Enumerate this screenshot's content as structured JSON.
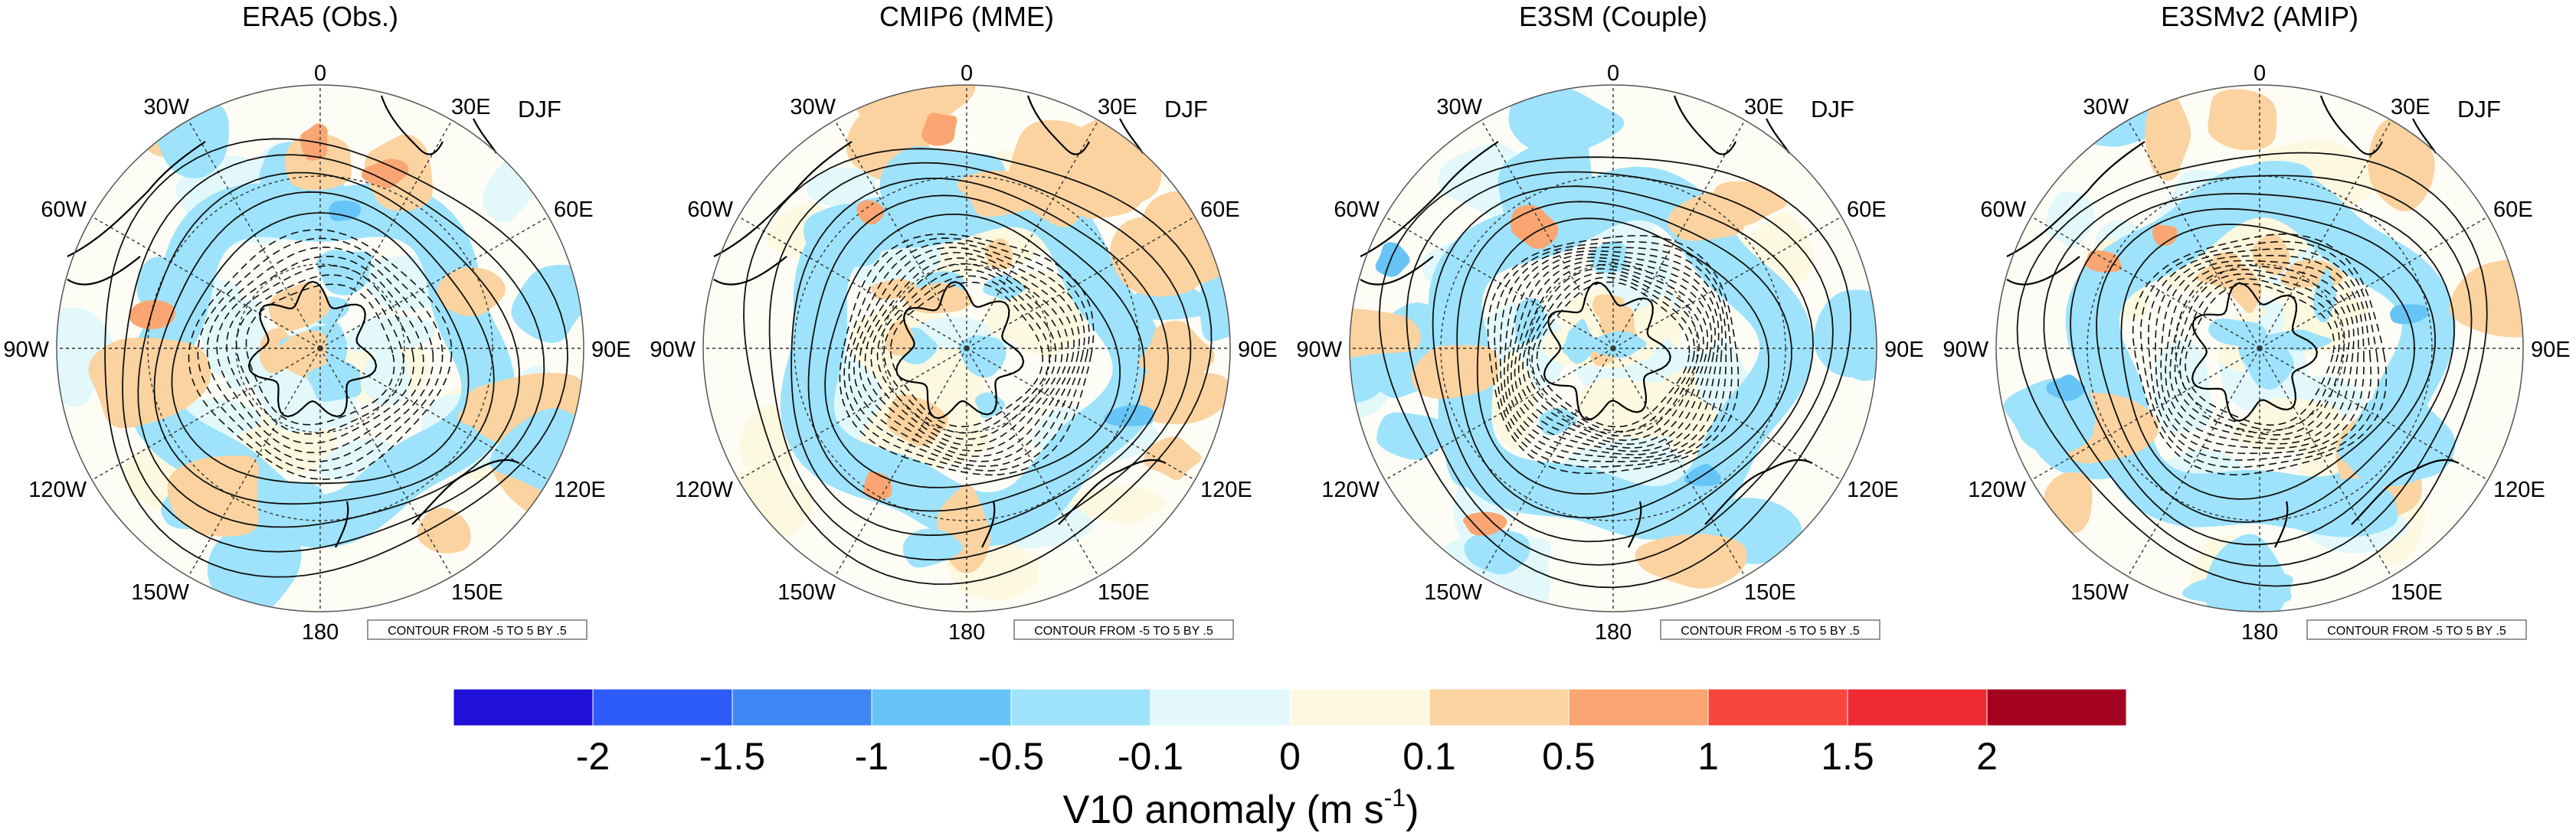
{
  "figure": {
    "season": "DJF",
    "contour_note": "CONTOUR FROM -5 TO 5 BY .5",
    "colors": {
      "land_outline": "#000000",
      "grid": "#333333",
      "background": "#ffffff"
    }
  },
  "panels": [
    {
      "title": "ERA5 (Obs.)"
    },
    {
      "title": "CMIP6 (MME)"
    },
    {
      "title": "E3SM (Couple)"
    },
    {
      "title": "E3SMv2 (AMIP)"
    }
  ],
  "longitude_labels": [
    {
      "lon": 0,
      "label": "0"
    },
    {
      "lon": 30,
      "label": "30E"
    },
    {
      "lon": 60,
      "label": "60E"
    },
    {
      "lon": 90,
      "label": "90E"
    },
    {
      "lon": 120,
      "label": "120E"
    },
    {
      "lon": 150,
      "label": "150E"
    },
    {
      "lon": 180,
      "label": "180"
    },
    {
      "lon": 210,
      "label": "150W"
    },
    {
      "lon": 240,
      "label": "120W"
    },
    {
      "lon": 270,
      "label": "90W"
    },
    {
      "lon": 300,
      "label": "60W"
    },
    {
      "lon": 330,
      "label": "30W"
    }
  ],
  "colorbar": {
    "title": "V10 anomaly (m s",
    "title_superscript": "-1",
    "title_suffix": ")",
    "tick_labels": [
      "-2",
      "-1.5",
      "-1",
      "-0.5",
      "-0.1",
      "0",
      "0.1",
      "0.5",
      "1",
      "1.5",
      "2"
    ],
    "colors": [
      "#2010d8",
      "#2d5bf7",
      "#3f86f5",
      "#67c4f7",
      "#9ee3fb",
      "#e2f8fb",
      "#fdf9e0",
      "#fbd3a0",
      "#fba672",
      "#f9463c",
      "#ef2a32",
      "#a30221"
    ]
  }
}
